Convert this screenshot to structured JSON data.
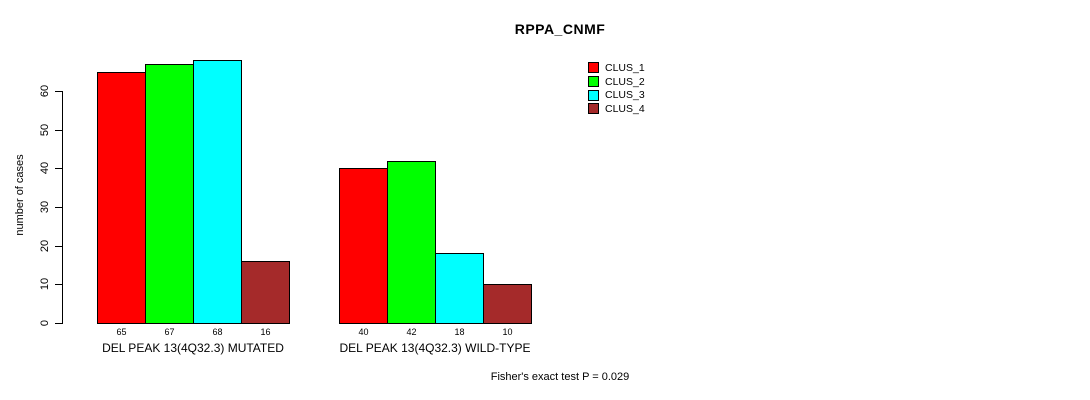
{
  "title": "RPPA_CNMF",
  "footer": "Fisher's exact test P = 0.029",
  "chart_data": {
    "type": "bar",
    "title": "RPPA_CNMF",
    "xlabel": "",
    "ylabel": "number of cases",
    "ylim": [
      0,
      60
    ],
    "yticks": [
      0,
      10,
      20,
      30,
      40,
      50,
      60
    ],
    "grid": false,
    "legend_position": "top-right",
    "categories": [
      "DEL PEAK 13(4Q32.3) MUTATED",
      "DEL PEAK 13(4Q32.3) WILD-TYPE"
    ],
    "series": [
      {
        "name": "CLUS_1",
        "color": "#ff0000",
        "values": [
          65,
          40
        ]
      },
      {
        "name": "CLUS_2",
        "color": "#00ff00",
        "values": [
          67,
          42
        ]
      },
      {
        "name": "CLUS_3",
        "color": "#00ffff",
        "values": [
          68,
          18
        ]
      },
      {
        "name": "CLUS_4",
        "color": "#a52a2a",
        "values": [
          16,
          10
        ]
      }
    ],
    "bar_value_labels": [
      [
        65,
        67,
        68,
        16
      ],
      [
        40,
        42,
        18,
        10
      ]
    ],
    "annotation": "Fisher's exact test P = 0.029"
  }
}
